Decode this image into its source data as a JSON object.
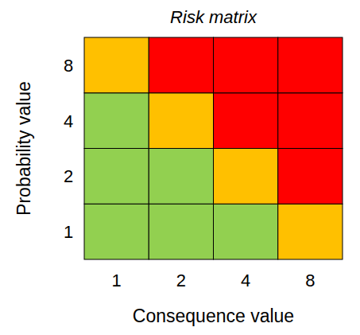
{
  "chart_data": {
    "type": "heatmap",
    "title": "Risk matrix",
    "x_label": "Consequence value",
    "y_label": "Probability value",
    "x_categories": [
      "1",
      "2",
      "4",
      "8"
    ],
    "y_categories": [
      "1",
      "2",
      "4",
      "8"
    ],
    "cells": [
      [
        "#92d050",
        "#92d050",
        "#92d050",
        "#ffc000"
      ],
      [
        "#92d050",
        "#92d050",
        "#ffc000",
        "#ff0000"
      ],
      [
        "#92d050",
        "#ffc000",
        "#ff0000",
        "#ff0000"
      ],
      [
        "#ffc000",
        "#ff0000",
        "#ff0000",
        "#ff0000"
      ]
    ]
  }
}
